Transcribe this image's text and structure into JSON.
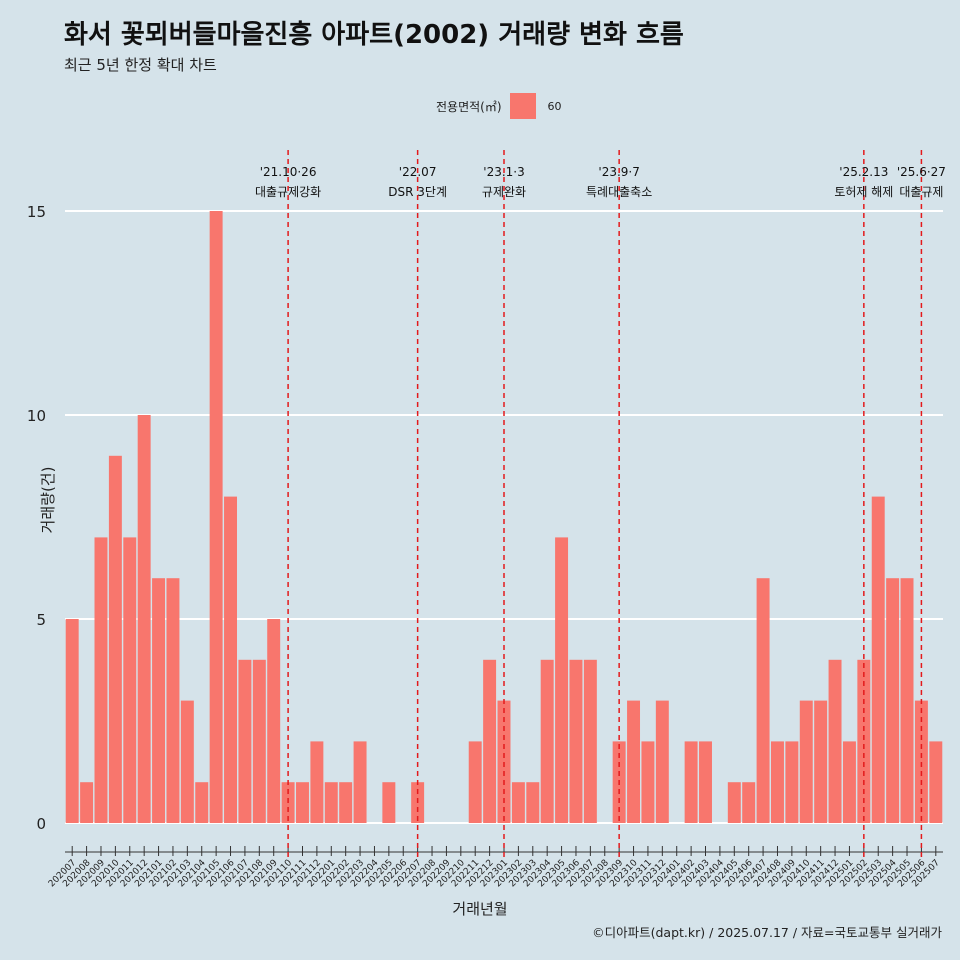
{
  "header": {
    "title": "화서 꽃뫼버들마을진흥 아파트(2002) 거래량 변화 흐름",
    "subtitle": "최근 5년 한정 확대 차트"
  },
  "legend": {
    "title": "전용면적(㎡)",
    "value": "60"
  },
  "caption": "©디아파트(dapt.kr) / 2025.07.17 / 자료=국토교통부 실거래가",
  "colors": {
    "background": "#d5e3ea",
    "bar": "#f8766d",
    "gridline": "#ffffff",
    "event_line": "#e31a1c"
  },
  "chart_data": {
    "type": "bar",
    "xlabel": "거래년월",
    "ylabel": "거래량(건)",
    "ylim": [
      0,
      15
    ],
    "yticks": [
      0,
      5,
      10,
      15
    ],
    "grid": true,
    "legend_position": "top",
    "categories": [
      "202007",
      "202008",
      "202009",
      "202010",
      "202011",
      "202012",
      "202101",
      "202102",
      "202103",
      "202104",
      "202105",
      "202106",
      "202107",
      "202108",
      "202109",
      "202110",
      "202111",
      "202112",
      "202201",
      "202202",
      "202203",
      "202204",
      "202205",
      "202206",
      "202207",
      "202208",
      "202209",
      "202210",
      "202211",
      "202212",
      "202301",
      "202302",
      "202303",
      "202304",
      "202305",
      "202306",
      "202307",
      "202308",
      "202309",
      "202310",
      "202311",
      "202312",
      "202401",
      "202402",
      "202403",
      "202404",
      "202405",
      "202406",
      "202407",
      "202408",
      "202409",
      "202410",
      "202411",
      "202412",
      "202501",
      "202502",
      "202503",
      "202504",
      "202505",
      "202506",
      "202507"
    ],
    "series": [
      {
        "name": "60",
        "values": [
          5,
          1,
          7,
          9,
          7,
          10,
          6,
          6,
          3,
          1,
          15,
          8,
          4,
          4,
          5,
          1,
          1,
          2,
          1,
          1,
          2,
          0,
          1,
          0,
          1,
          0,
          0,
          0,
          2,
          4,
          3,
          1,
          1,
          4,
          7,
          4,
          4,
          0,
          2,
          3,
          2,
          3,
          0,
          2,
          2,
          0,
          1,
          1,
          6,
          2,
          2,
          3,
          3,
          4,
          2,
          4,
          8,
          6,
          6,
          3,
          2
        ]
      }
    ],
    "events": [
      {
        "date": "'21.10·26",
        "label": "대출규제강화",
        "x": "202110"
      },
      {
        "date": "'22.07",
        "label": "DSR 3단계",
        "x": "202207"
      },
      {
        "date": "'23.1·3",
        "label": "규제완화",
        "x": "202301"
      },
      {
        "date": "'23.9·7",
        "label": "특례대출축소",
        "x": "202309"
      },
      {
        "date": "'25.2.13",
        "label": "토허제 해제",
        "x": "202502"
      },
      {
        "date": "'25.6·27",
        "label": "대출규제",
        "x": "202506"
      }
    ]
  }
}
